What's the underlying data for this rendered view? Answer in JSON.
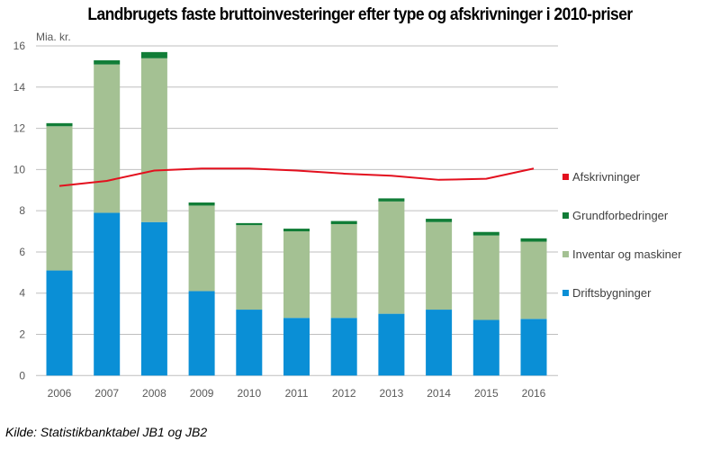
{
  "chart_data": {
    "type": "bar",
    "stacked": true,
    "title": "Landbrugets faste bruttoinvesteringer efter type og afskrivninger i 2010-priser",
    "ylabel": "Mia. kr.",
    "xlabel": "",
    "ylim": [
      0,
      16
    ],
    "yticks": [
      "0",
      "2",
      "4",
      "6",
      "8",
      "10",
      "12",
      "14",
      "16"
    ],
    "grid": true,
    "legend_position": "right",
    "categories": [
      "2006",
      "2007",
      "2008",
      "2009",
      "2010",
      "2011",
      "2012",
      "2013",
      "2014",
      "2015",
      "2016"
    ],
    "series": [
      {
        "name": "Driftsbygninger",
        "type": "bar",
        "color": "#0a8fd6",
        "values": [
          5.1,
          7.9,
          7.45,
          4.1,
          3.2,
          2.8,
          2.8,
          3.0,
          3.2,
          2.7,
          2.75
        ]
      },
      {
        "name": "Inventar og maskiner",
        "type": "bar",
        "color": "#a4c193",
        "values": [
          7.0,
          7.2,
          7.95,
          4.15,
          4.1,
          4.2,
          4.55,
          5.45,
          4.25,
          4.1,
          3.75
        ]
      },
      {
        "name": "Grundforbedringer",
        "type": "bar",
        "color": "#117d37",
        "values": [
          0.15,
          0.2,
          0.3,
          0.15,
          0.1,
          0.13,
          0.15,
          0.15,
          0.16,
          0.17,
          0.16
        ]
      },
      {
        "name": "Afskrivninger",
        "type": "line",
        "color": "#e3101e",
        "values": [
          9.2,
          9.45,
          9.95,
          10.05,
          10.05,
          9.95,
          9.8,
          9.7,
          9.5,
          9.55,
          10.05
        ]
      }
    ],
    "legend_order": [
      "Afskrivninger",
      "Grundforbedringer",
      "Inventar og maskiner",
      "Driftsbygninger"
    ]
  },
  "source": "Kilde: Statistikbanktabel JB1 og JB2"
}
